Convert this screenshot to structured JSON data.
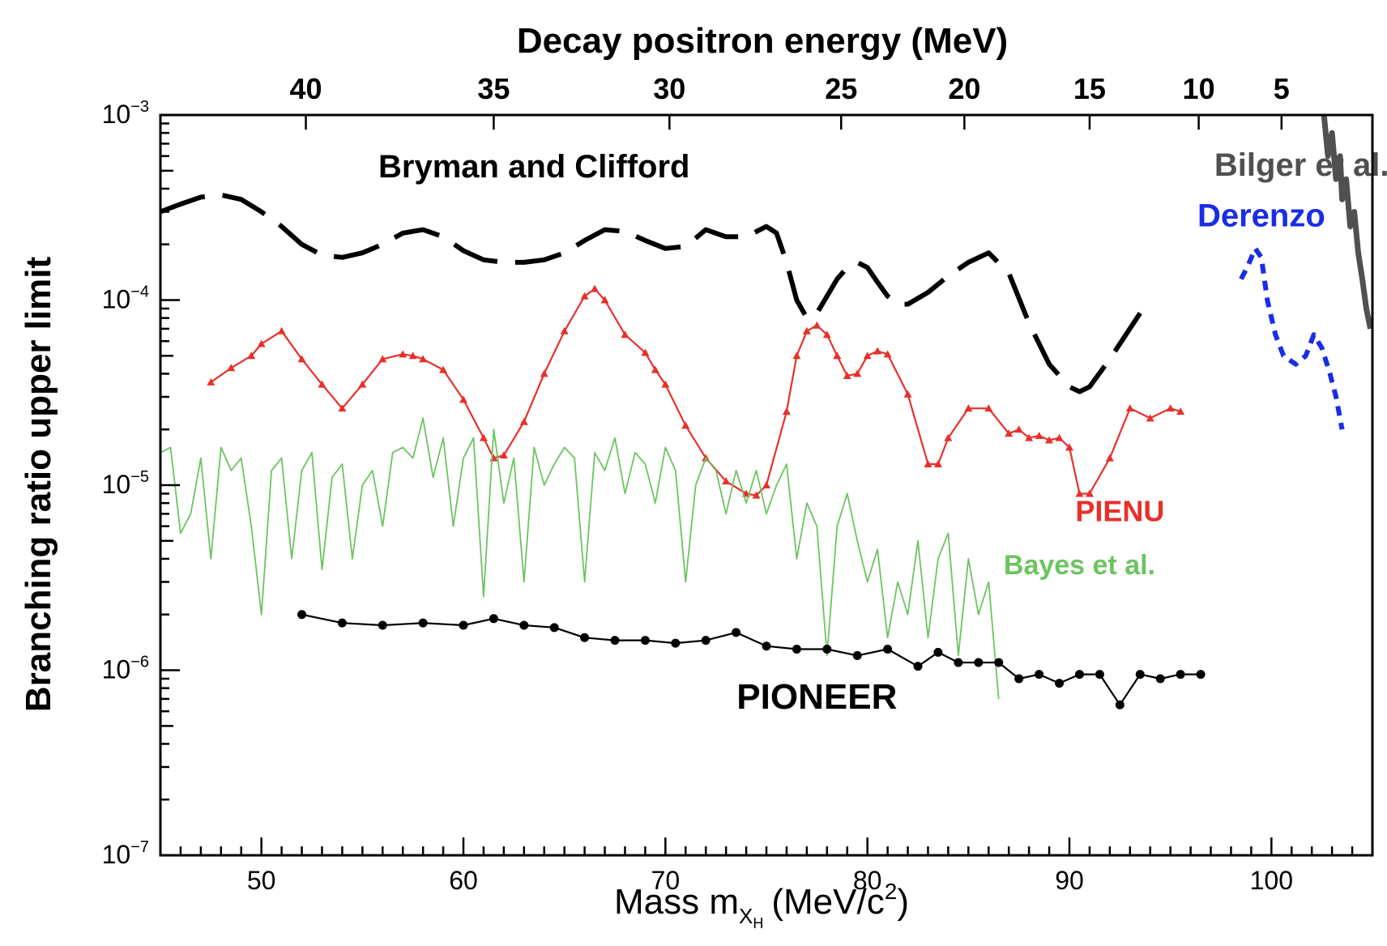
{
  "chart_data": {
    "type": "line",
    "title": "",
    "xlabel": "Mass m",
    "xlabel_sub": "X",
    "xlabel_subsub": "H",
    "xlabel_unit_open": "(MeV/c",
    "xlabel_unit_sup": "2",
    "xlabel_unit_close": ")",
    "ylabel": "Branching ratio upper limit",
    "x2label": "Decay positron energy (MeV)",
    "xlim": [
      45,
      105
    ],
    "ylim": [
      1e-07,
      0.001
    ],
    "yscale": "log",
    "grid": false,
    "x_ticks": [
      50,
      60,
      70,
      80,
      90,
      100
    ],
    "y_ticks": [
      {
        "value": 1e-07,
        "base": "10",
        "exp": "−7"
      },
      {
        "value": 1e-06,
        "base": "10",
        "exp": "−6"
      },
      {
        "value": 1e-05,
        "base": "10",
        "exp": "−5"
      },
      {
        "value": 0.0001,
        "base": "10",
        "exp": "−4"
      },
      {
        "value": 0.001,
        "base": "10",
        "exp": "−3"
      }
    ],
    "x2_ticks": [
      {
        "label": "40",
        "mass": 52.2
      },
      {
        "label": "35",
        "mass": 61.5
      },
      {
        "label": "30",
        "mass": 70.2
      },
      {
        "label": "25",
        "mass": 78.7
      },
      {
        "label": "20",
        "mass": 84.8
      },
      {
        "label": "15",
        "mass": 91.0
      },
      {
        "label": "10",
        "mass": 96.4
      },
      {
        "label": "5",
        "mass": 100.5
      }
    ],
    "series": [
      {
        "name": "Bryman and Clifford",
        "color": "#000000",
        "style": "dashed",
        "x": [
          45,
          46,
          47,
          48,
          49,
          50,
          51,
          52,
          53,
          54,
          55,
          56,
          57,
          58,
          59,
          60,
          61,
          62,
          63,
          64,
          65,
          66,
          67,
          68,
          69,
          70,
          71,
          72,
          73,
          74,
          75,
          75.5,
          76,
          76.5,
          77,
          77.5,
          78,
          78.5,
          79,
          79.5,
          80,
          80.5,
          81,
          81.5,
          82,
          83,
          84,
          85,
          86,
          87,
          88,
          89,
          90,
          90.5,
          91,
          92,
          93.5
        ],
        "y": [
          0.0003,
          0.00033,
          0.00036,
          0.00037,
          0.00035,
          0.0003,
          0.00025,
          0.0002,
          0.000175,
          0.00017,
          0.00018,
          0.0002,
          0.00023,
          0.00024,
          0.00022,
          0.000185,
          0.000165,
          0.00016,
          0.00016,
          0.000165,
          0.00018,
          0.00021,
          0.00024,
          0.000235,
          0.00021,
          0.00019,
          0.000195,
          0.00024,
          0.00022,
          0.00022,
          0.00025,
          0.00023,
          0.00016,
          0.0001,
          8e-05,
          8.5e-05,
          0.000105,
          0.00013,
          0.00015,
          0.00016,
          0.00015,
          0.000125,
          0.000105,
          9.5e-05,
          9.5e-05,
          0.00011,
          0.000135,
          0.00016,
          0.00018,
          0.00014,
          7.5e-05,
          4.5e-05,
          3.4e-05,
          3.2e-05,
          3.4e-05,
          4.8e-05,
          8.5e-05
        ]
      },
      {
        "name": "PIENU",
        "color": "#e8302a",
        "style": "line-markers",
        "x": [
          47.5,
          48.5,
          49.5,
          50,
          51,
          52,
          53,
          54,
          55,
          56,
          57,
          57.5,
          58,
          59,
          60,
          61,
          61.5,
          62,
          63,
          64,
          65,
          66,
          66.5,
          67,
          68,
          69,
          69.5,
          70,
          71,
          72,
          73,
          74,
          74.5,
          75,
          76,
          76.5,
          77,
          77.5,
          78,
          78.5,
          79,
          79.5,
          80,
          80.5,
          81,
          82,
          83,
          83.5,
          84,
          85,
          86,
          87,
          87.5,
          88,
          88.5,
          89,
          89.5,
          90,
          90.5,
          91,
          92,
          93,
          94,
          95,
          95.5
        ],
        "y": [
          3.6e-05,
          4.3e-05,
          5e-05,
          5.8e-05,
          6.8e-05,
          4.8e-05,
          3.5e-05,
          2.6e-05,
          3.5e-05,
          4.8e-05,
          5.1e-05,
          5e-05,
          4.8e-05,
          4.2e-05,
          2.9e-05,
          1.8e-05,
          1.4e-05,
          1.45e-05,
          2.2e-05,
          4e-05,
          6.8e-05,
          0.000105,
          0.000115,
          0.0001,
          6.5e-05,
          5.2e-05,
          4.2e-05,
          3.5e-05,
          2.1e-05,
          1.4e-05,
          1.05e-05,
          9e-06,
          8.8e-06,
          1e-05,
          2.5e-05,
          5e-05,
          6.8e-05,
          7.3e-05,
          6.5e-05,
          5e-05,
          3.9e-05,
          4e-05,
          5e-05,
          5.3e-05,
          5.1e-05,
          3.1e-05,
          1.3e-05,
          1.3e-05,
          1.8e-05,
          2.6e-05,
          2.6e-05,
          1.9e-05,
          2e-05,
          1.8e-05,
          1.85e-05,
          1.75e-05,
          1.8e-05,
          1.6e-05,
          9e-06,
          9e-06,
          1.4e-05,
          2.6e-05,
          2.3e-05,
          2.6e-05,
          2.5e-05
        ]
      },
      {
        "name": "Bayes et al.",
        "color": "#6cc460",
        "style": "noisy-line",
        "x": [
          45,
          45.5,
          46,
          46.5,
          47,
          47.5,
          48,
          48.5,
          49,
          49.5,
          50,
          50.5,
          51,
          51.5,
          52,
          52.5,
          53,
          53.5,
          54,
          54.5,
          55,
          55.5,
          56,
          56.5,
          57,
          57.5,
          58,
          58.5,
          59,
          59.5,
          60,
          60.5,
          61,
          61.5,
          62,
          62.5,
          63,
          63.5,
          64,
          64.5,
          65,
          65.5,
          66,
          66.5,
          67,
          67.5,
          68,
          68.5,
          69,
          69.5,
          70,
          70.5,
          71,
          71.5,
          72,
          72.5,
          73,
          73.5,
          74,
          74.5,
          75,
          75.5,
          76,
          76.5,
          77,
          77.5,
          78,
          78.5,
          79,
          79.5,
          80,
          80.5,
          81,
          81.5,
          82,
          82.5,
          83,
          83.5,
          84,
          84.5,
          85,
          85.5,
          86,
          86.5
        ],
        "y": [
          1.5e-05,
          1.6e-05,
          5.5e-06,
          7e-06,
          1.4e-05,
          4e-06,
          1.6e-05,
          1.2e-05,
          1.4e-05,
          6e-06,
          2e-06,
          1.2e-05,
          1.4e-05,
          4e-06,
          1.2e-05,
          1.5e-05,
          3.5e-06,
          1.1e-05,
          1.3e-05,
          4e-06,
          1e-05,
          1.2e-05,
          6e-06,
          1.5e-05,
          1.6e-05,
          1.4e-05,
          2.3e-05,
          1.1e-05,
          1.8e-05,
          6e-06,
          1.4e-05,
          1.8e-05,
          2.5e-06,
          2e-05,
          8e-06,
          1.4e-05,
          3e-06,
          1.6e-05,
          1e-05,
          1.3e-05,
          1.6e-05,
          1.4e-05,
          3e-06,
          1.5e-05,
          1.2e-05,
          1.8e-05,
          9e-06,
          1.5e-05,
          1.3e-05,
          8e-06,
          1.6e-05,
          1.2e-05,
          3e-06,
          1e-05,
          1.4e-05,
          1.2e-05,
          7e-06,
          1.2e-05,
          8e-06,
          1.2e-05,
          7e-06,
          1e-05,
          1.3e-05,
          4e-06,
          8e-06,
          6e-06,
          1.2e-06,
          6e-06,
          9e-06,
          5e-06,
          3e-06,
          4.5e-06,
          1.5e-06,
          3e-06,
          2e-06,
          5e-06,
          1.5e-06,
          4e-06,
          5.5e-06,
          1.2e-06,
          4e-06,
          2e-06,
          3e-06,
          7e-07
        ]
      },
      {
        "name": "PIONEER",
        "color": "#000000",
        "style": "line-markers",
        "x": [
          52,
          54,
          56,
          58,
          60,
          61.5,
          63,
          64.5,
          66,
          67.5,
          69,
          70.5,
          72,
          73.5,
          75,
          76.5,
          78,
          79.5,
          81,
          82.5,
          83.5,
          84.5,
          85.5,
          86.5,
          87.5,
          88.5,
          89.5,
          90.5,
          91.5,
          92.5,
          93.5,
          94.5,
          95.5,
          96.5
        ],
        "y": [
          2e-06,
          1.8e-06,
          1.75e-06,
          1.8e-06,
          1.75e-06,
          1.9e-06,
          1.75e-06,
          1.7e-06,
          1.5e-06,
          1.45e-06,
          1.45e-06,
          1.4e-06,
          1.45e-06,
          1.6e-06,
          1.35e-06,
          1.3e-06,
          1.3e-06,
          1.2e-06,
          1.3e-06,
          1.05e-06,
          1.25e-06,
          1.1e-06,
          1.1e-06,
          1.1e-06,
          9e-07,
          9.5e-07,
          8.5e-07,
          9.5e-07,
          9.5e-07,
          6.5e-07,
          9.5e-07,
          9e-07,
          9.5e-07,
          9.5e-07
        ]
      },
      {
        "name": "Derenzo",
        "color": "#1a2de6",
        "style": "dotted",
        "x": [
          98.5,
          98.8,
          99.2,
          99.5,
          99.8,
          100.2,
          100.6,
          101.2,
          101.7,
          102.1,
          102.5,
          102.9,
          103.2,
          103.5
        ],
        "y": [
          0.00013,
          0.00015,
          0.00019,
          0.00017,
          0.0001,
          6.5e-05,
          5e-05,
          4.5e-05,
          5e-05,
          6.5e-05,
          5.5e-05,
          4e-05,
          3e-05,
          2e-05
        ]
      },
      {
        "name": "Bilger et al.",
        "color": "#505050",
        "style": "solid-thick",
        "x": [
          102.6,
          102.8,
          103.0,
          103.2,
          103.4,
          103.5,
          103.7,
          103.9,
          104.1,
          104.3,
          104.5,
          104.7,
          104.9
        ],
        "y": [
          0.001,
          0.0006,
          0.0008,
          0.00045,
          0.0006,
          0.00035,
          0.00045,
          0.00025,
          0.0003,
          0.00018,
          0.00013,
          9e-05,
          7e-05
        ]
      }
    ],
    "annotations": [
      {
        "text": "Bryman and Clifford",
        "color": "#000000",
        "at": [
          63.5,
          0.00046
        ]
      },
      {
        "text": "Bilger et al.",
        "color": "#505050",
        "at": [
          101.5,
          0.00047
        ]
      },
      {
        "text": "Derenzo",
        "color": "#1a2de6",
        "at": [
          99.5,
          0.00025
        ]
      },
      {
        "text": "PIENU",
        "color": "#e8302a",
        "at": [
          92.5,
          6.4e-06
        ]
      },
      {
        "text": "Bayes et al.",
        "color": "#6cc460",
        "at": [
          90.5,
          3.3e-06
        ]
      },
      {
        "text": "PIONEER",
        "color": "#000000",
        "at": [
          77.5,
          6.2e-07
        ]
      }
    ]
  }
}
